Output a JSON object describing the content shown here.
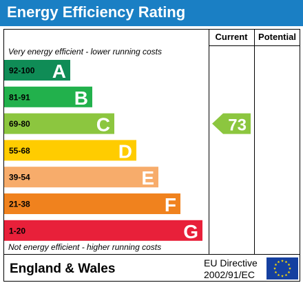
{
  "title": "Energy Efficiency Rating",
  "columns": {
    "current": "Current",
    "potential": "Potential"
  },
  "captions": {
    "top": "Very energy efficient - lower running costs",
    "bottom": "Not energy efficient - higher running costs"
  },
  "footer": {
    "region": "England & Wales",
    "directive_line1": "EU Directive",
    "directive_line2": "2002/91/EC"
  },
  "chart_data": {
    "type": "bar",
    "categories": [
      "92-100",
      "81-91",
      "69-80",
      "55-68",
      "39-54",
      "21-38",
      "1-20"
    ],
    "bands": [
      {
        "range": "92-100",
        "letter": "A",
        "color": "#0f8c56"
      },
      {
        "range": "81-91",
        "letter": "B",
        "color": "#22b14c"
      },
      {
        "range": "69-80",
        "letter": "C",
        "color": "#8cc63f"
      },
      {
        "range": "55-68",
        "letter": "D",
        "color": "#ffcc00"
      },
      {
        "range": "39-54",
        "letter": "E",
        "color": "#f7ac6b"
      },
      {
        "range": "21-38",
        "letter": "F",
        "color": "#f0821e"
      },
      {
        "range": "1-20",
        "letter": "G",
        "color": "#e8203a"
      }
    ],
    "current": {
      "value": 73,
      "band": "C",
      "color": "#8cc63f"
    },
    "potential": null
  }
}
